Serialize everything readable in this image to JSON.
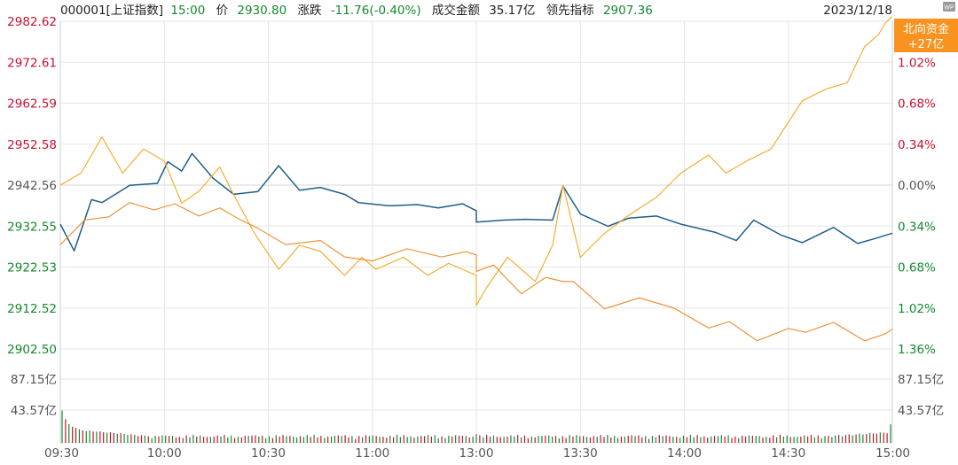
{
  "header": {
    "code": "000001[上证指数]",
    "time": "15:00",
    "price_label": "价",
    "price": "2930.80",
    "change_label": "涨跌",
    "change": "-11.76(-0.40%)",
    "turnover_label": "成交金额",
    "turnover": "35.17亿",
    "leader_label": "领先指标",
    "leader": "2907.36",
    "date": "2023/12/18"
  },
  "badge": {
    "line1": "北向资金",
    "line2": "+27亿"
  },
  "corner_icon": "wp-icon",
  "colors": {
    "index": "#1f5f85",
    "leader": "#f5a623",
    "north": "#ee8a2a",
    "up": "#c8102e",
    "down": "#128a2b",
    "neutral": "#555555",
    "grid": "#e6e6e6"
  },
  "chart_data": {
    "type": "line",
    "ylim": [
      2902.5,
      2982.62
    ],
    "y_ticks_left": [
      "2982.62",
      "2972.61",
      "2962.59",
      "2952.58",
      "2942.56",
      "2932.55",
      "2922.53",
      "2912.52",
      "2902.50"
    ],
    "y_ticks_right": [
      "1.36%",
      "1.02%",
      "0.68%",
      "0.34%",
      "0.00%",
      "0.34%",
      "0.68%",
      "1.02%",
      "1.36%"
    ],
    "x_ticks": [
      "09:30",
      "10:00",
      "10:30",
      "11:00",
      "13:00",
      "13:30",
      "14:00",
      "14:30",
      "15:00"
    ],
    "series": [
      {
        "x": [
          "09:30",
          "09:34",
          "09:39",
          "09:42",
          "09:50",
          "09:58",
          "10:01",
          "10:05",
          "10:08",
          "10:14",
          "10:20",
          "10:27",
          "10:33",
          "10:39",
          "10:45",
          "10:52",
          "10:56",
          "11:05",
          "11:13",
          "11:19",
          "11:26",
          "11:30",
          "13:00",
          "13:08",
          "13:14",
          "13:22",
          "13:25",
          "13:30",
          "13:38",
          "13:44",
          "13:52",
          "13:59",
          "14:09",
          "14:15",
          "14:20",
          "14:28",
          "14:34",
          "14:43",
          "14:50",
          "14:55",
          "15:00"
        ],
        "y": [
          2933.0,
          2926.5,
          2939.0,
          2938.3,
          2942.5,
          2943.0,
          2948.3,
          2946.0,
          2950.3,
          2944.3,
          2940.3,
          2941.0,
          2947.3,
          2941.3,
          2942.0,
          2940.3,
          2938.3,
          2937.5,
          2937.8,
          2937.0,
          2938.0,
          2936.3,
          2933.5,
          2934.0,
          2934.2,
          2934.0,
          2942.3,
          2935.5,
          2932.5,
          2934.5,
          2935.0,
          2933.0,
          2931.0,
          2929.0,
          2934.0,
          2930.3,
          2928.5,
          2932.2,
          2928.3,
          2929.5,
          2930.8
        ]
      },
      {
        "x": [
          "09:30",
          "09:36",
          "09:42",
          "09:48",
          "09:54",
          "10:00",
          "10:05",
          "10:10",
          "10:16",
          "10:20",
          "10:26",
          "10:33",
          "10:39",
          "10:45",
          "10:52",
          "10:57",
          "11:01",
          "11:09",
          "11:16",
          "11:22",
          "11:30",
          "13:00",
          "13:03",
          "13:09",
          "13:17",
          "13:22",
          "13:25",
          "13:30",
          "13:37",
          "13:44",
          "13:52",
          "13:59",
          "14:07",
          "14:12",
          "14:18",
          "14:25",
          "14:34",
          "14:41",
          "14:47",
          "14:52",
          "14:56",
          "14:58",
          "15:00"
        ],
        "y": [
          "0.00%",
          "0.10%",
          "0.40%",
          "0.10%",
          "0.30%",
          "0.20%",
          "-0.15%",
          "-0.05%",
          "0.15%",
          "-0.08%",
          "-0.40%",
          "-0.70%",
          "-0.50%",
          "-0.55%",
          "-0.75%",
          "-0.60%",
          "-0.70%",
          "-0.60%",
          "-0.75%",
          "-0.65%",
          "-0.75%",
          "-1.00%",
          "-0.85%",
          "-0.60%",
          "-0.80%",
          "-0.50%",
          "0.00%",
          "-0.60%",
          "-0.40%",
          "-0.25%",
          "-0.10%",
          "0.10%",
          "0.25%",
          "0.10%",
          "0.20%",
          "0.30%",
          "0.70%",
          "0.80%",
          "0.85%",
          "1.15%",
          "1.25%",
          "1.35%",
          "1.40%"
        ]
      },
      {
        "x": [
          "09:30",
          "09:37",
          "09:44",
          "09:50",
          "09:57",
          "10:03",
          "10:10",
          "10:16",
          "10:21",
          "10:27",
          "10:35",
          "10:45",
          "10:52",
          "11:00",
          "11:10",
          "11:20",
          "11:27",
          "11:30",
          "13:00",
          "13:05",
          "13:13",
          "13:20",
          "13:25",
          "13:28",
          "13:37",
          "13:47",
          "13:57",
          "14:07",
          "14:13",
          "14:21",
          "14:30",
          "14:35",
          "14:43",
          "14:52",
          "14:58",
          "15:00"
        ],
        "y": [
          2928.0,
          2934.0,
          2934.8,
          2938.3,
          2936.5,
          2938.0,
          2935.0,
          2937.0,
          2934.5,
          2932.0,
          2928.0,
          2929.0,
          2925.0,
          2924.0,
          2927.0,
          2925.0,
          2926.3,
          2925.5,
          2921.5,
          2923.0,
          2916.0,
          2920.0,
          2919.0,
          2919.0,
          2912.3,
          2915.0,
          2912.5,
          2907.6,
          2909.2,
          2904.5,
          2907.5,
          2906.6,
          2909.0,
          2904.5,
          2906.2,
          2907.36
        ]
      }
    ],
    "volume": {
      "y_ticks": [
        "87.15亿",
        "43.57亿"
      ],
      "ylim": [
        0,
        130.72
      ]
    }
  }
}
